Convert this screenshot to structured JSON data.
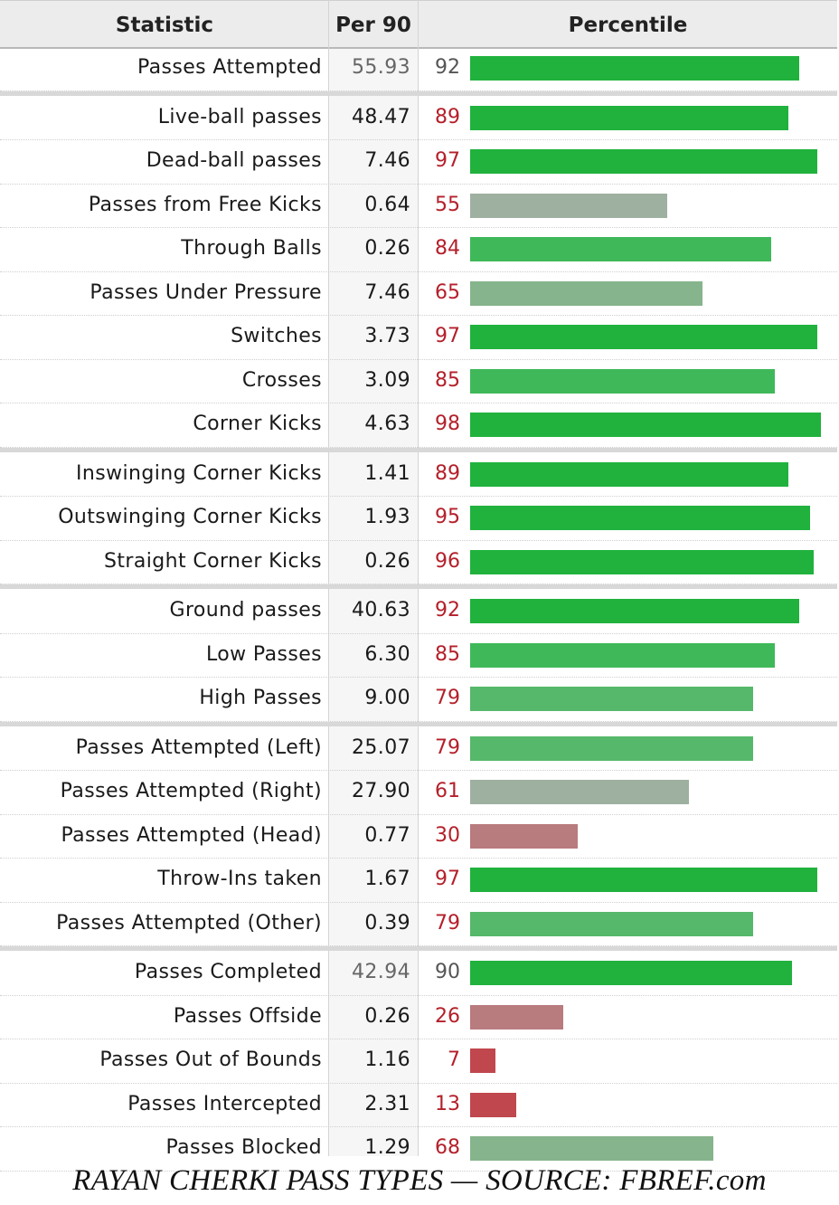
{
  "header": {
    "statistic": "Statistic",
    "per90": "Per 90",
    "percentile": "Percentile"
  },
  "caption": "RAYAN CHERKI PASS TYPES — SOURCE: FBREF.com",
  "colors": {
    "elite": "#20b23d",
    "high": "#3fb859",
    "good": "#55b86a",
    "mid_green": "#86b48c",
    "neutral": "#9eb0a0",
    "low": "#b87b7e",
    "very_low": "#c0474d",
    "summary_pct_text": "#555555",
    "pct_text": "#b4202a"
  },
  "chart_data": {
    "type": "bar",
    "title": "RAYAN CHERKI PASS TYPES — SOURCE: FBREF.com",
    "columns": [
      "Statistic",
      "Per 90",
      "Percentile"
    ],
    "xlim": [
      0,
      100
    ],
    "rows": [
      {
        "stat": "Passes Attempted",
        "per90": "55.93",
        "pct": 92,
        "summary": true,
        "group": 0
      },
      {
        "stat": "Live-ball passes",
        "per90": "48.47",
        "pct": 89,
        "group": 1
      },
      {
        "stat": "Dead-ball passes",
        "per90": "7.46",
        "pct": 97,
        "group": 1
      },
      {
        "stat": "Passes from Free Kicks",
        "per90": "0.64",
        "pct": 55,
        "group": 1
      },
      {
        "stat": "Through Balls",
        "per90": "0.26",
        "pct": 84,
        "group": 1
      },
      {
        "stat": "Passes Under Pressure",
        "per90": "7.46",
        "pct": 65,
        "group": 1
      },
      {
        "stat": "Switches",
        "per90": "3.73",
        "pct": 97,
        "group": 1
      },
      {
        "stat": "Crosses",
        "per90": "3.09",
        "pct": 85,
        "group": 1
      },
      {
        "stat": "Corner Kicks",
        "per90": "4.63",
        "pct": 98,
        "group": 1
      },
      {
        "stat": "Inswinging Corner Kicks",
        "per90": "1.41",
        "pct": 89,
        "group": 2
      },
      {
        "stat": "Outswinging Corner Kicks",
        "per90": "1.93",
        "pct": 95,
        "group": 2
      },
      {
        "stat": "Straight Corner Kicks",
        "per90": "0.26",
        "pct": 96,
        "group": 2
      },
      {
        "stat": "Ground passes",
        "per90": "40.63",
        "pct": 92,
        "group": 3
      },
      {
        "stat": "Low Passes",
        "per90": "6.30",
        "pct": 85,
        "group": 3
      },
      {
        "stat": "High Passes",
        "per90": "9.00",
        "pct": 79,
        "group": 3
      },
      {
        "stat": "Passes Attempted (Left)",
        "per90": "25.07",
        "pct": 79,
        "group": 4
      },
      {
        "stat": "Passes Attempted (Right)",
        "per90": "27.90",
        "pct": 61,
        "group": 4
      },
      {
        "stat": "Passes Attempted (Head)",
        "per90": "0.77",
        "pct": 30,
        "group": 4
      },
      {
        "stat": "Throw-Ins taken",
        "per90": "1.67",
        "pct": 97,
        "group": 4
      },
      {
        "stat": "Passes Attempted (Other)",
        "per90": "0.39",
        "pct": 79,
        "group": 4
      },
      {
        "stat": "Passes Completed",
        "per90": "42.94",
        "pct": 90,
        "summary": true,
        "group": 5
      },
      {
        "stat": "Passes Offside",
        "per90": "0.26",
        "pct": 26,
        "group": 5
      },
      {
        "stat": "Passes Out of Bounds",
        "per90": "1.16",
        "pct": 7,
        "group": 5
      },
      {
        "stat": "Passes Intercepted",
        "per90": "2.31",
        "pct": 13,
        "group": 5
      },
      {
        "stat": "Passes Blocked",
        "per90": "1.29",
        "pct": 68,
        "group": 5
      }
    ]
  }
}
